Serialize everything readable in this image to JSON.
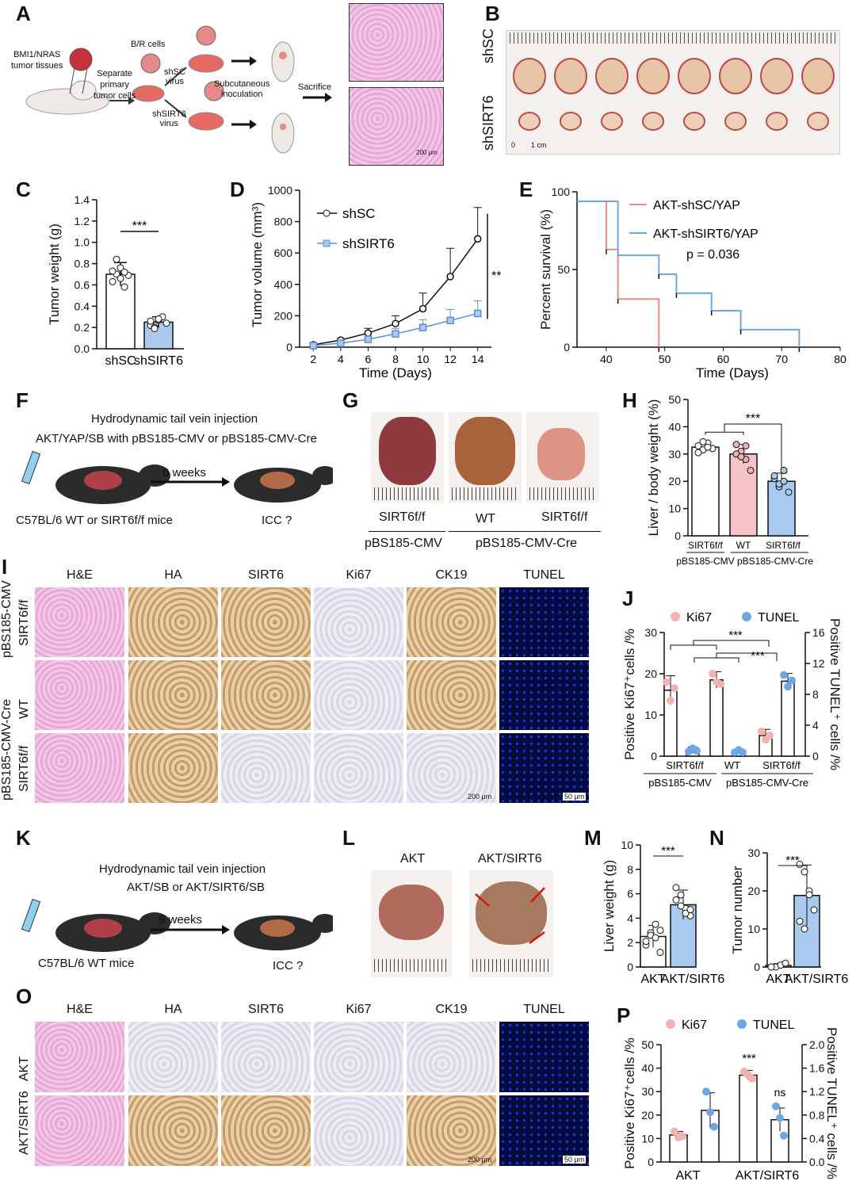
{
  "panel_labels": [
    "A",
    "B",
    "C",
    "D",
    "E",
    "F",
    "G",
    "H",
    "I",
    "J",
    "K",
    "L",
    "M",
    "N",
    "O",
    "P"
  ],
  "a": {
    "tissue": "BMI1/NRAS\ntumor tissues",
    "separate": "Separate\nprimary\ntumor cells",
    "br": "B/R cells",
    "shsc_virus": "shSC\nvirus",
    "shsirt6_virus": "shSIRT6\nvirus",
    "subq": "Subcutaneous\ninoculation",
    "sacrifice": "Sacrifice",
    "scale": "200 μm"
  },
  "b": {
    "row1": "shSC",
    "row2": "shSIRT6",
    "scale0": "0",
    "scale1": "1 cm"
  },
  "c": {
    "ylabel": "Tumor weight (g)",
    "sig": "***"
  },
  "d": {
    "ylabel": "Tumor volume (mm³)",
    "xlabel": "Time (Days)",
    "sig": "**"
  },
  "e": {
    "ylabel": "Percent survival (%)",
    "xlabel": "Time (Days)",
    "pvalue": "p = 0.036"
  },
  "f": {
    "line1": "Hydrodynamic tail vein injection",
    "line2": "AKT/YAP/SB with pBS185-CMV or pBS185-CMV-Cre",
    "weeks": "6 weeks",
    "mice": "C57BL/6 WT or SIRT6f/f mice",
    "icc": "ICC ?"
  },
  "g": {
    "l1": "SIRT6f/f",
    "l2": "WT",
    "l3": "SIRT6f/f",
    "g1": "pBS185-CMV",
    "g2": "pBS185-CMV-Cre"
  },
  "h": {
    "ylabel": "Liver / body weight (%)",
    "sig": "***",
    "c1": "SIRT6f/f",
    "c2": "WT",
    "c3": "SIRT6f/f",
    "g1": "pBS185-CMV",
    "g2": "pBS185-CMV-Cre"
  },
  "i": {
    "cols": [
      "H&E",
      "HA",
      "SIRT6",
      "Ki67",
      "CK19",
      "TUNEL"
    ],
    "rows": [
      "SIRT6f/f",
      "WT",
      "SIRT6f/f"
    ],
    "groups": [
      "pBS185-CMV",
      "pBS185-CMV-Cre"
    ],
    "scale1": "200 μm",
    "scale2": "50 μm"
  },
  "j": {
    "leg1": "Ki67",
    "leg2": "TUNEL",
    "ylabel": "Positive Ki67⁺cells /%",
    "y2label": "Positive TUNEL⁺ cells /%",
    "sig1": "***",
    "sig2": "***",
    "c1": "SIRT6f/f",
    "c2": "WT",
    "c3": "SIRT6f/f",
    "g1": "pBS185-CMV",
    "g2": "pBS185-CMV-Cre"
  },
  "k": {
    "line1": "Hydrodynamic tail vein injection",
    "line2": "AKT/SB or AKT/SIRT6/SB",
    "weeks": "9 weeks",
    "mice": "C57BL/6 WT mice",
    "icc": "ICC ?"
  },
  "l": {
    "l1": "AKT",
    "l2": "AKT/SIRT6"
  },
  "m": {
    "ylabel": "Liver weight (g)",
    "sig": "***"
  },
  "n": {
    "ylabel": "Tumor number",
    "sig": "***"
  },
  "o": {
    "cols": [
      "H&E",
      "HA",
      "SIRT6",
      "Ki67",
      "CK19",
      "TUNEL"
    ],
    "rows": [
      "AKT",
      "AKT/SIRT6"
    ],
    "scale1": "200 μm",
    "scale2": "50 μm"
  },
  "p": {
    "leg1": "Ki67",
    "leg2": "TUNEL",
    "ylabel": "Positive Ki67⁺cells /%",
    "y2label": "Positive TUNEL⁺ cells /%",
    "sig1": "***",
    "sig2": "ns"
  },
  "chart_data": [
    {
      "panel": "C",
      "type": "bar",
      "categories": [
        "shSC",
        "shSIRT6"
      ],
      "values": [
        0.7,
        0.25
      ],
      "errors": [
        0.11,
        0.05
      ],
      "points": [
        [
          0.63,
          0.7,
          0.76,
          0.58,
          0.69,
          0.73,
          0.84,
          0.66,
          0.72
        ],
        [
          0.22,
          0.2,
          0.27,
          0.3,
          0.24,
          0.26,
          0.19,
          0.28
        ]
      ],
      "ylim": [
        0,
        1.4
      ],
      "yticks": [
        0.0,
        0.2,
        0.4,
        0.6,
        0.8,
        1.0,
        1.2,
        1.4
      ]
    },
    {
      "panel": "D",
      "type": "line",
      "x": [
        2,
        4,
        6,
        8,
        10,
        12,
        14
      ],
      "series": [
        {
          "name": "shSC",
          "values": [
            15,
            45,
            90,
            150,
            245,
            450,
            690
          ],
          "errors": [
            5,
            10,
            30,
            50,
            100,
            180,
            200
          ]
        },
        {
          "name": "shSIRT6",
          "values": [
            10,
            25,
            50,
            85,
            125,
            170,
            215
          ],
          "errors": [
            4,
            8,
            20,
            35,
            50,
            70,
            80
          ]
        }
      ],
      "ylim": [
        0,
        1000
      ],
      "yticks": [
        0,
        200,
        400,
        600,
        800,
        1000
      ],
      "xticks": [
        2,
        4,
        6,
        8,
        10,
        12,
        14
      ]
    },
    {
      "panel": "E",
      "type": "line",
      "series": [
        {
          "name": "AKT-shSC/YAP",
          "steps": [
            [
              35,
              100
            ],
            [
              40,
              100
            ],
            [
              40,
              67
            ],
            [
              42,
              67
            ],
            [
              42,
              33
            ],
            [
              49,
              33
            ],
            [
              49,
              0
            ]
          ],
          "censor": [
            [
              40,
              67
            ],
            [
              42,
              33
            ],
            [
              49,
              0
            ]
          ]
        },
        {
          "name": "AKT-shSIRT6/YAP",
          "steps": [
            [
              35,
              100
            ],
            [
              42,
              100
            ],
            [
              42,
              63
            ],
            [
              49,
              63
            ],
            [
              49,
              50
            ],
            [
              52,
              50
            ],
            [
              52,
              37
            ],
            [
              58,
              37
            ],
            [
              58,
              25
            ],
            [
              63,
              25
            ],
            [
              63,
              12
            ],
            [
              73,
              12
            ],
            [
              73,
              0
            ]
          ],
          "censor": [
            [
              49,
              50
            ],
            [
              52,
              37
            ],
            [
              58,
              25
            ],
            [
              63,
              12
            ],
            [
              73,
              0
            ]
          ]
        }
      ],
      "xlim": [
        35,
        80
      ],
      "xticks": [
        40,
        50,
        60,
        70,
        80
      ],
      "ylim": [
        0,
        100
      ],
      "yticks": [
        0,
        50,
        100
      ]
    },
    {
      "panel": "H",
      "type": "bar",
      "categories": [
        "SIRT6f/f",
        "WT",
        "SIRT6f/f"
      ],
      "values": [
        32.5,
        30,
        20
      ],
      "errors": [
        1.5,
        3.5,
        3
      ],
      "points": [
        [
          33,
          31.5,
          34,
          32,
          30.5,
          34.5,
          32.5
        ],
        [
          33.5,
          31,
          28,
          24,
          30,
          29,
          33
        ],
        [
          21,
          18,
          24,
          16,
          22,
          19,
          20
        ]
      ],
      "ylim": [
        0,
        50
      ],
      "yticks": [
        0,
        10,
        20,
        30,
        40,
        50
      ]
    },
    {
      "panel": "J",
      "type": "bar",
      "categories": [
        "SIRT6f/f",
        "WT",
        "SIRT6f/f"
      ],
      "series": [
        {
          "name": "Ki67",
          "axis": "left",
          "values": [
            16,
            18.5,
            5
          ],
          "errors": [
            3.5,
            2,
            1.5
          ],
          "points": [
            [
              18,
              13.5,
              16.5
            ],
            [
              20,
              18,
              17.5
            ],
            [
              6,
              4,
              5
            ]
          ]
        },
        {
          "name": "TUNEL",
          "axis": "right",
          "values": [
            0.8,
            0.6,
            9.7
          ],
          "errors": [
            0.4,
            0.3,
            1
          ],
          "points": [
            [
              0.6,
              1,
              0.7
            ],
            [
              0.5,
              0.8,
              0.5
            ],
            [
              10.5,
              9,
              9.8
            ]
          ]
        }
      ],
      "ylim": [
        0,
        30
      ],
      "yticks": [
        0,
        10,
        20,
        30
      ],
      "y2lim": [
        0,
        16
      ],
      "y2ticks": [
        0,
        4,
        8,
        12,
        16
      ]
    },
    {
      "panel": "M",
      "type": "bar",
      "categories": [
        "AKT",
        "AKT/SIRT6"
      ],
      "values": [
        2.5,
        5.1
      ],
      "errors": [
        0.9,
        1.2
      ],
      "points": [
        [
          1.8,
          2.8,
          3.5,
          1.2,
          2.1,
          2.6,
          2.4,
          3
        ],
        [
          6.5,
          5.9,
          4.8,
          4.2,
          5.5,
          5,
          4.4,
          4.7
        ]
      ],
      "ylim": [
        0,
        10
      ],
      "yticks": [
        0,
        2,
        4,
        6,
        8,
        10
      ]
    },
    {
      "panel": "N",
      "type": "bar",
      "categories": [
        "AKT",
        "AKT/SIRT6"
      ],
      "values": [
        0.4,
        18.8
      ],
      "errors": [
        0.5,
        8
      ],
      "points": [
        [
          0,
          0,
          0.5,
          1,
          0
        ],
        [
          27,
          25,
          20,
          15,
          12,
          10,
          19
        ]
      ],
      "ylim": [
        0,
        30
      ],
      "yticks": [
        0,
        10,
        20,
        30
      ]
    },
    {
      "panel": "P",
      "type": "bar",
      "categories": [
        "AKT",
        "AKT/SIRT6"
      ],
      "series": [
        {
          "name": "Ki67",
          "axis": "left",
          "values": [
            11.5,
            37
          ],
          "errors": [
            1.5,
            2
          ],
          "points": [
            [
              13,
              10.5,
              11
            ],
            [
              38.5,
              37,
              35.5
            ]
          ]
        },
        {
          "name": "TUNEL",
          "axis": "right",
          "values": [
            0.88,
            0.72
          ],
          "errors": [
            0.3,
            0.2
          ],
          "points": [
            [
              1.2,
              0.85,
              0.6
            ],
            [
              0.95,
              0.75,
              0.45
            ]
          ]
        }
      ],
      "ylim": [
        0,
        50
      ],
      "yticks": [
        0,
        10,
        20,
        30,
        40,
        50
      ],
      "y2lim": [
        0,
        2.0
      ],
      "y2ticks": [
        0.0,
        0.4,
        0.8,
        1.2,
        1.6,
        2.0
      ]
    }
  ]
}
